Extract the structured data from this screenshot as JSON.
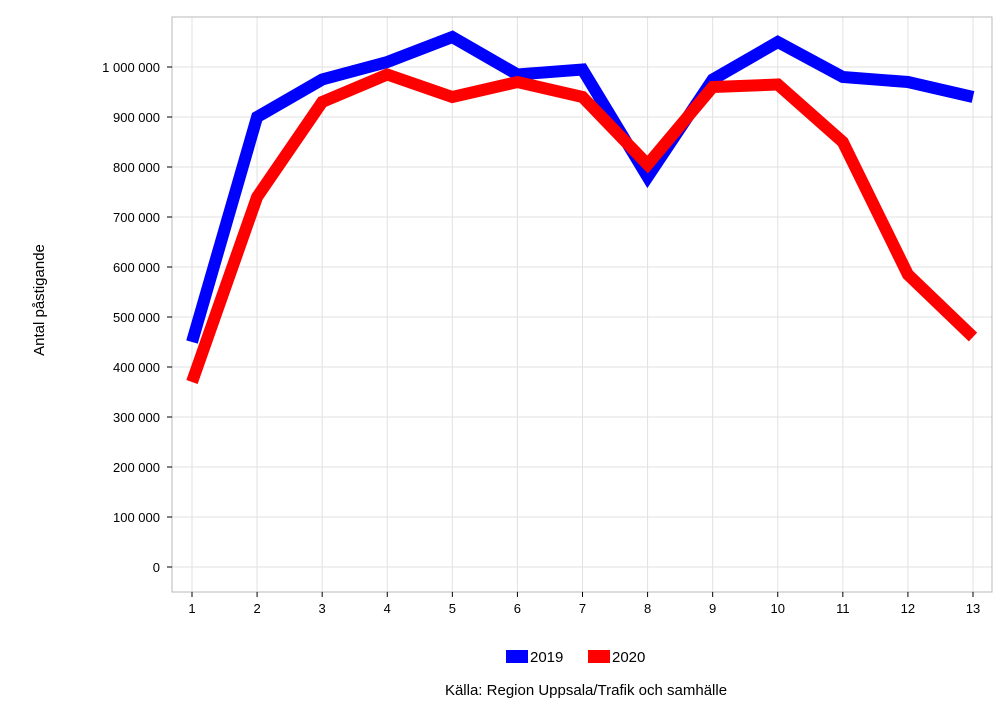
{
  "chart_data": {
    "type": "line",
    "x": [
      1,
      2,
      3,
      4,
      5,
      6,
      7,
      8,
      9,
      10,
      11,
      12,
      13
    ],
    "series": [
      {
        "name": "2019",
        "color": "#0000ff",
        "values": [
          450000,
          900000,
          975000,
          1010000,
          1060000,
          985000,
          995000,
          780000,
          975000,
          1050000,
          980000,
          970000,
          940000
        ]
      },
      {
        "name": "2020",
        "color": "#ff0000",
        "values": [
          370000,
          740000,
          930000,
          985000,
          940000,
          970000,
          940000,
          805000,
          960000,
          965000,
          850000,
          585000,
          460000
        ]
      }
    ],
    "ylabel": "Antal påstigande",
    "xlabel": "",
    "ylim": [
      0,
      1000000
    ],
    "x_tick_labels": [
      "1",
      "2",
      "3",
      "4",
      "5",
      "6",
      "7",
      "8",
      "9",
      "10",
      "11",
      "12",
      "13"
    ],
    "y_tick_labels": [
      "0",
      "100 000",
      "200 000",
      "300 000",
      "400 000",
      "500 000",
      "600 000",
      "700 000",
      "800 000",
      "900 000",
      "1 000 000"
    ],
    "grid": true,
    "legend_position": "bottom"
  },
  "source": "Källa: Region Uppsala/Trafik och samhälle"
}
